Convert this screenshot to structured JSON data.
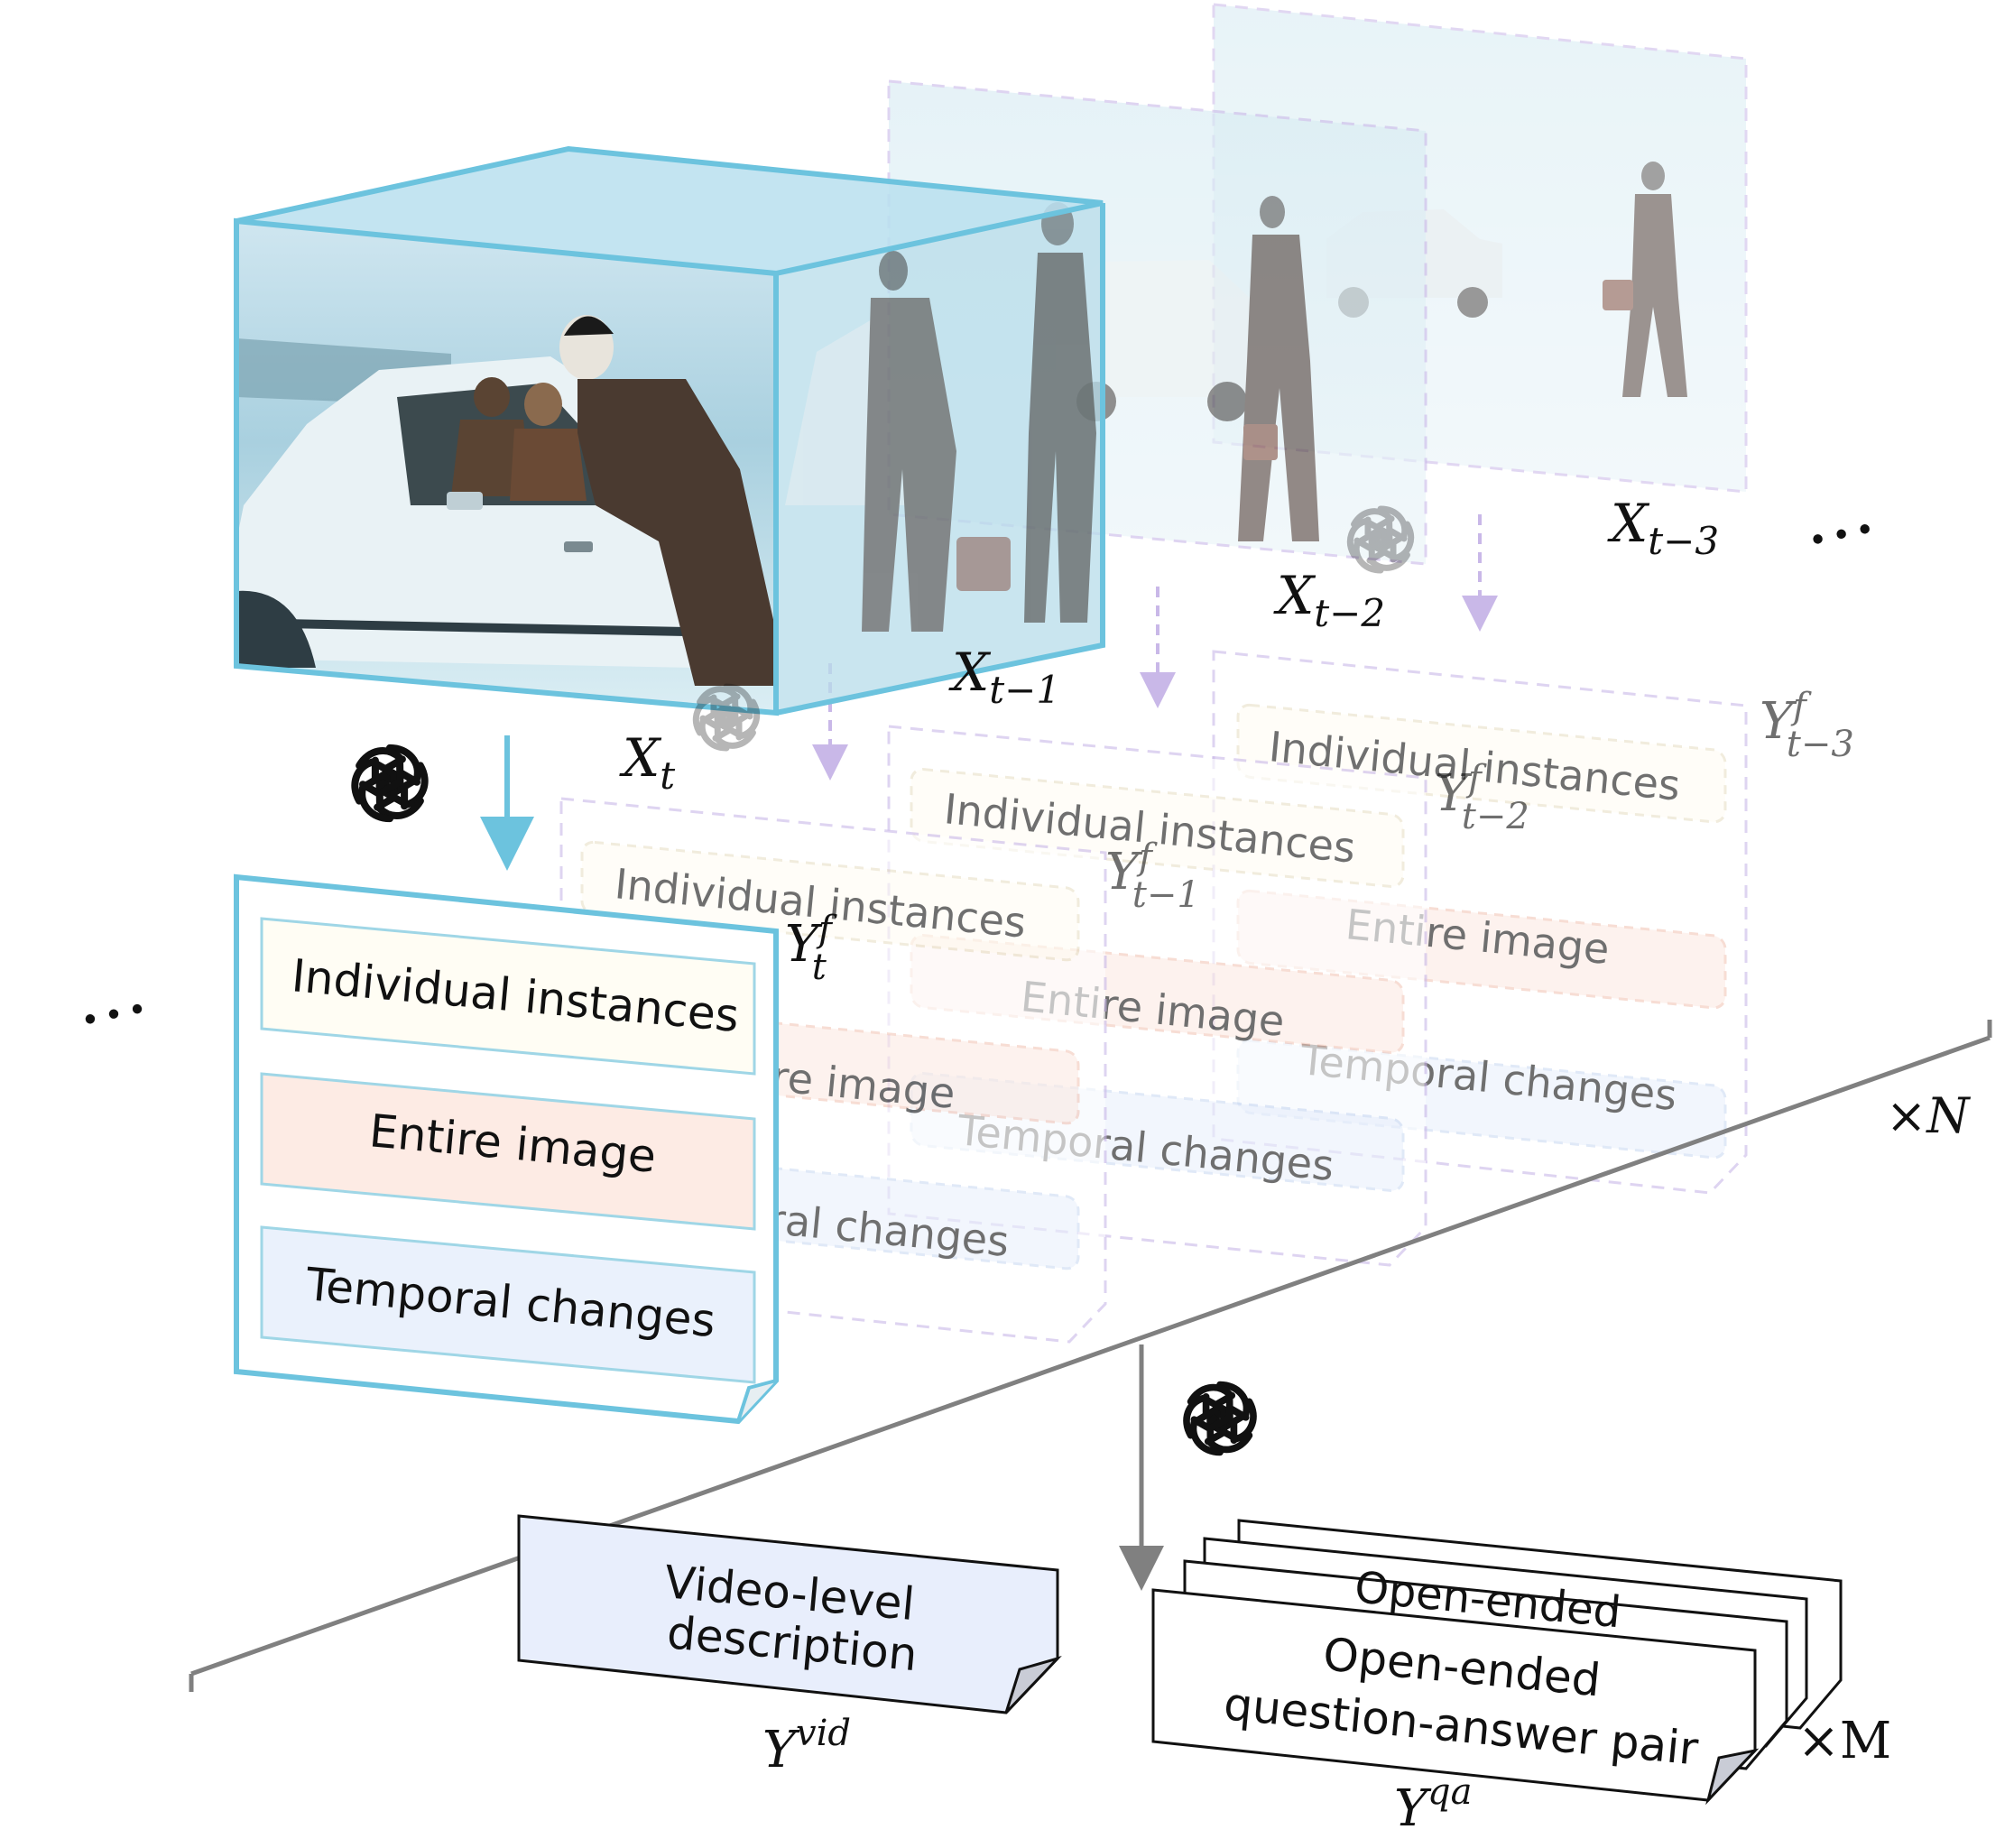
{
  "frames": {
    "current": {
      "label_base": "X",
      "label_sub": "t"
    },
    "prev1": {
      "label_base": "X",
      "label_sub": "t−1"
    },
    "prev2": {
      "label_base": "X",
      "label_sub": "t−2"
    },
    "prev3": {
      "label_base": "X",
      "label_sub": "t−3"
    }
  },
  "captions": {
    "current": {
      "base": "Y",
      "sup": "f",
      "sub": "t"
    },
    "prev1": {
      "base": "Y",
      "sup": "f",
      "sub": "t−1"
    },
    "prev2": {
      "base": "Y",
      "sup": "f",
      "sub": "t−2"
    },
    "prev3": {
      "base": "Y",
      "sup": "f",
      "sub": "t−3"
    }
  },
  "caption_rows": {
    "instances": "Individual instances",
    "entire": "Entire image",
    "temporal": "Temporal changes"
  },
  "ellipsis": "…",
  "repeat_n": "×N",
  "repeat_m": "×M",
  "video_level": {
    "line1": "Video-level",
    "line2": "description",
    "label_base": "Y",
    "label_sup": "vid"
  },
  "qa": {
    "line1": "Open-ended",
    "line2": "question-answer pair",
    "label_base": "Y",
    "label_sup": "qa"
  },
  "colors": {
    "accent_blue": "#6cc3de",
    "instances_fill": "#fffdf4",
    "entire_fill": "#fdebe4",
    "temporal_fill": "#eaf1fc",
    "dashed_purple": "#c9b8e8",
    "timeline_gray": "#808080"
  },
  "icons": {
    "generator": "openai-logo-icon"
  }
}
